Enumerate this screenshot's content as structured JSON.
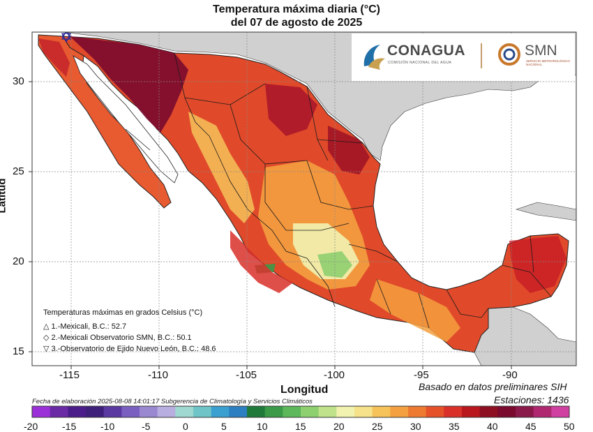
{
  "title": "Temperatura máxima diaria (°C)",
  "subtitle": "del 07 de agosto de 2025",
  "axes": {
    "xlabel": "Longitud",
    "ylabel": "Latitud",
    "xticks": [
      "-115",
      "-110",
      "-105",
      "-100",
      "-95",
      "-90"
    ],
    "yticks": [
      "30",
      "25",
      "20",
      "15"
    ]
  },
  "logos": {
    "conagua": "CONAGUA",
    "conagua_sub": "COMISIÓN NACIONAL DEL AGUA",
    "smn": "SMN",
    "smn_sub": "SERVICIO METEOROLÓGICO NACIONAL"
  },
  "legend": {
    "heading": "Temperaturas máximas en grados Celsius (°C)",
    "items": [
      {
        "symbol": "△",
        "text": "1.-Mexicali, B.C.: 52.7"
      },
      {
        "symbol": "◇",
        "text": "2.-Mexicali Observatorio SMN, B.C.: 50.1"
      },
      {
        "symbol": "▽",
        "text": "3.-Observatorio de Ejido Nuevo León, B.C.: 48.6"
      }
    ]
  },
  "footer": {
    "source": "Basado en datos preliminares SIH",
    "stations": "Estaciones:  1436",
    "elaboration": "Fecha de elaboración 2025-08-08 14:01:17 Subgerencia de Climatología y Servicios Climáticos"
  },
  "colorbar": {
    "labels": [
      "-20",
      "-15",
      "-10",
      "-5",
      "0",
      "5",
      "10",
      "15",
      "20",
      "25",
      "30",
      "35",
      "40",
      "45",
      "50"
    ],
    "colors": [
      "#9b30d9",
      "#6a2aa6",
      "#4b1d8a",
      "#3e1f7a",
      "#5a3aa0",
      "#7a5fc0",
      "#9a88d0",
      "#b8aee0",
      "#9fd8d0",
      "#6fc4c8",
      "#3aa0d0",
      "#2c7fc0",
      "#1f7a3a",
      "#3a9a48",
      "#5cb85a",
      "#8ecf6f",
      "#bfe28a",
      "#f1f2b0",
      "#f6e28a",
      "#f6c25a",
      "#f4a040",
      "#ee7a32",
      "#e5522a",
      "#d9302a",
      "#b8181e",
      "#8e0f22",
      "#7a0a2e",
      "#8a1a4a",
      "#b02870",
      "#d040a0"
    ]
  },
  "colors": {
    "land_other": "#d0d0d0",
    "water": "#ffffff",
    "hot_extreme": "#7a0a2e",
    "hot": "#d9302a",
    "warm": "#f4a040",
    "mild": "#f1f2b0",
    "cool": "#5cb85a"
  }
}
